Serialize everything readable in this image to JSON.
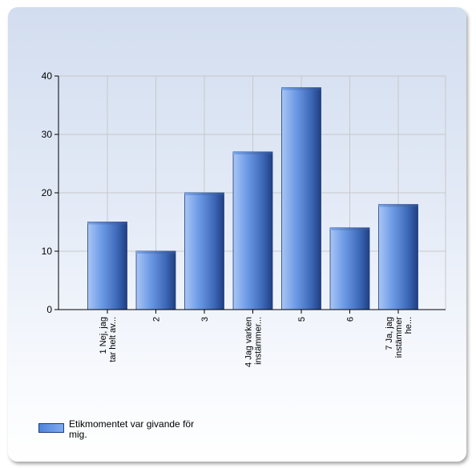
{
  "chart_data": {
    "type": "bar",
    "categories": [
      [
        "1 Nej, jag",
        "tar helt av..."
      ],
      [
        "2"
      ],
      [
        "3"
      ],
      [
        "4 Jag varken",
        "instämmer..."
      ],
      [
        "5"
      ],
      [
        "6"
      ],
      [
        "7 Ja, jag",
        "instämmer",
        "he..."
      ]
    ],
    "values": [
      15,
      10,
      20,
      27,
      38,
      14,
      18
    ],
    "yticks": [
      "0",
      "10",
      "20",
      "30",
      "40"
    ],
    "ylim": [
      0,
      40
    ],
    "legend": "Etikmomentet var givande för mig.",
    "grid": true,
    "legend_position": "bottom-left",
    "colors": {
      "bar_light": "#a9c6f5",
      "bar_mid": "#5c8fe0",
      "bar_dark": "#1f3f80",
      "grid": "#c8c8c8"
    }
  }
}
